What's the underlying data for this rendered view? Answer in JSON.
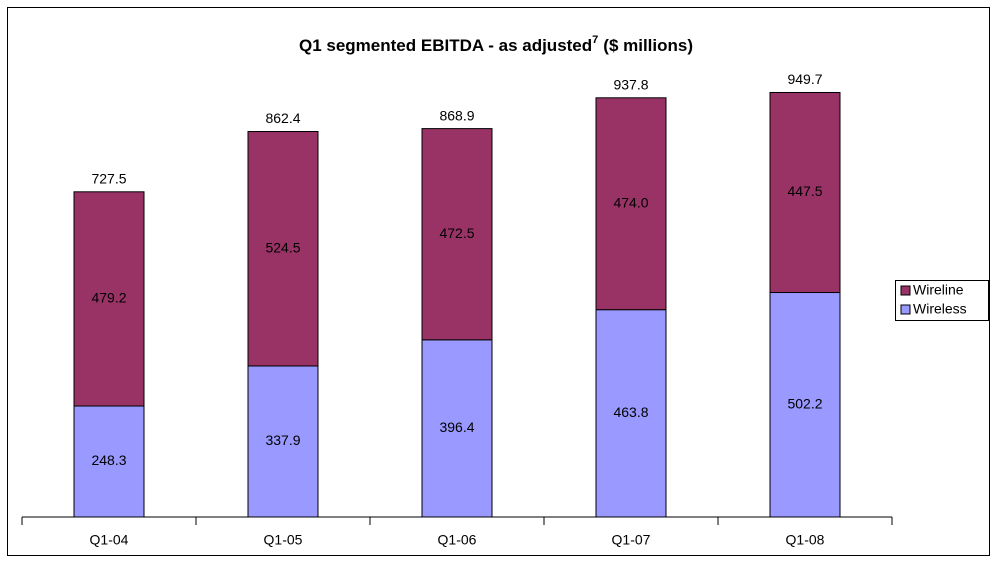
{
  "chart_data": {
    "type": "stacked_bar",
    "title": [
      "Q1 segmented EBITDA - as adjusted",
      "7",
      "($ millions)"
    ],
    "categories": [
      "Q1-04",
      "Q1-05",
      "Q1-06",
      "Q1-07",
      "Q1-08"
    ],
    "series": [
      {
        "name": "Wireless",
        "color": "#9999ff",
        "values": [
          248.3,
          337.9,
          396.4,
          463.8,
          502.2
        ],
        "value_labels": [
          "248.3",
          "337.9",
          "396.4",
          "463.8",
          "502.2"
        ]
      },
      {
        "name": "Wireline",
        "color": "#993366",
        "values": [
          479.2,
          524.5,
          472.5,
          474.0,
          447.5
        ],
        "value_labels": [
          "479.2",
          "524.5",
          "472.5",
          "474.0",
          "447.5"
        ]
      }
    ],
    "totals": [
      727.5,
      862.4,
      868.9,
      937.8,
      949.7
    ],
    "ylim": [
      0,
      1000
    ],
    "legend": "right"
  }
}
